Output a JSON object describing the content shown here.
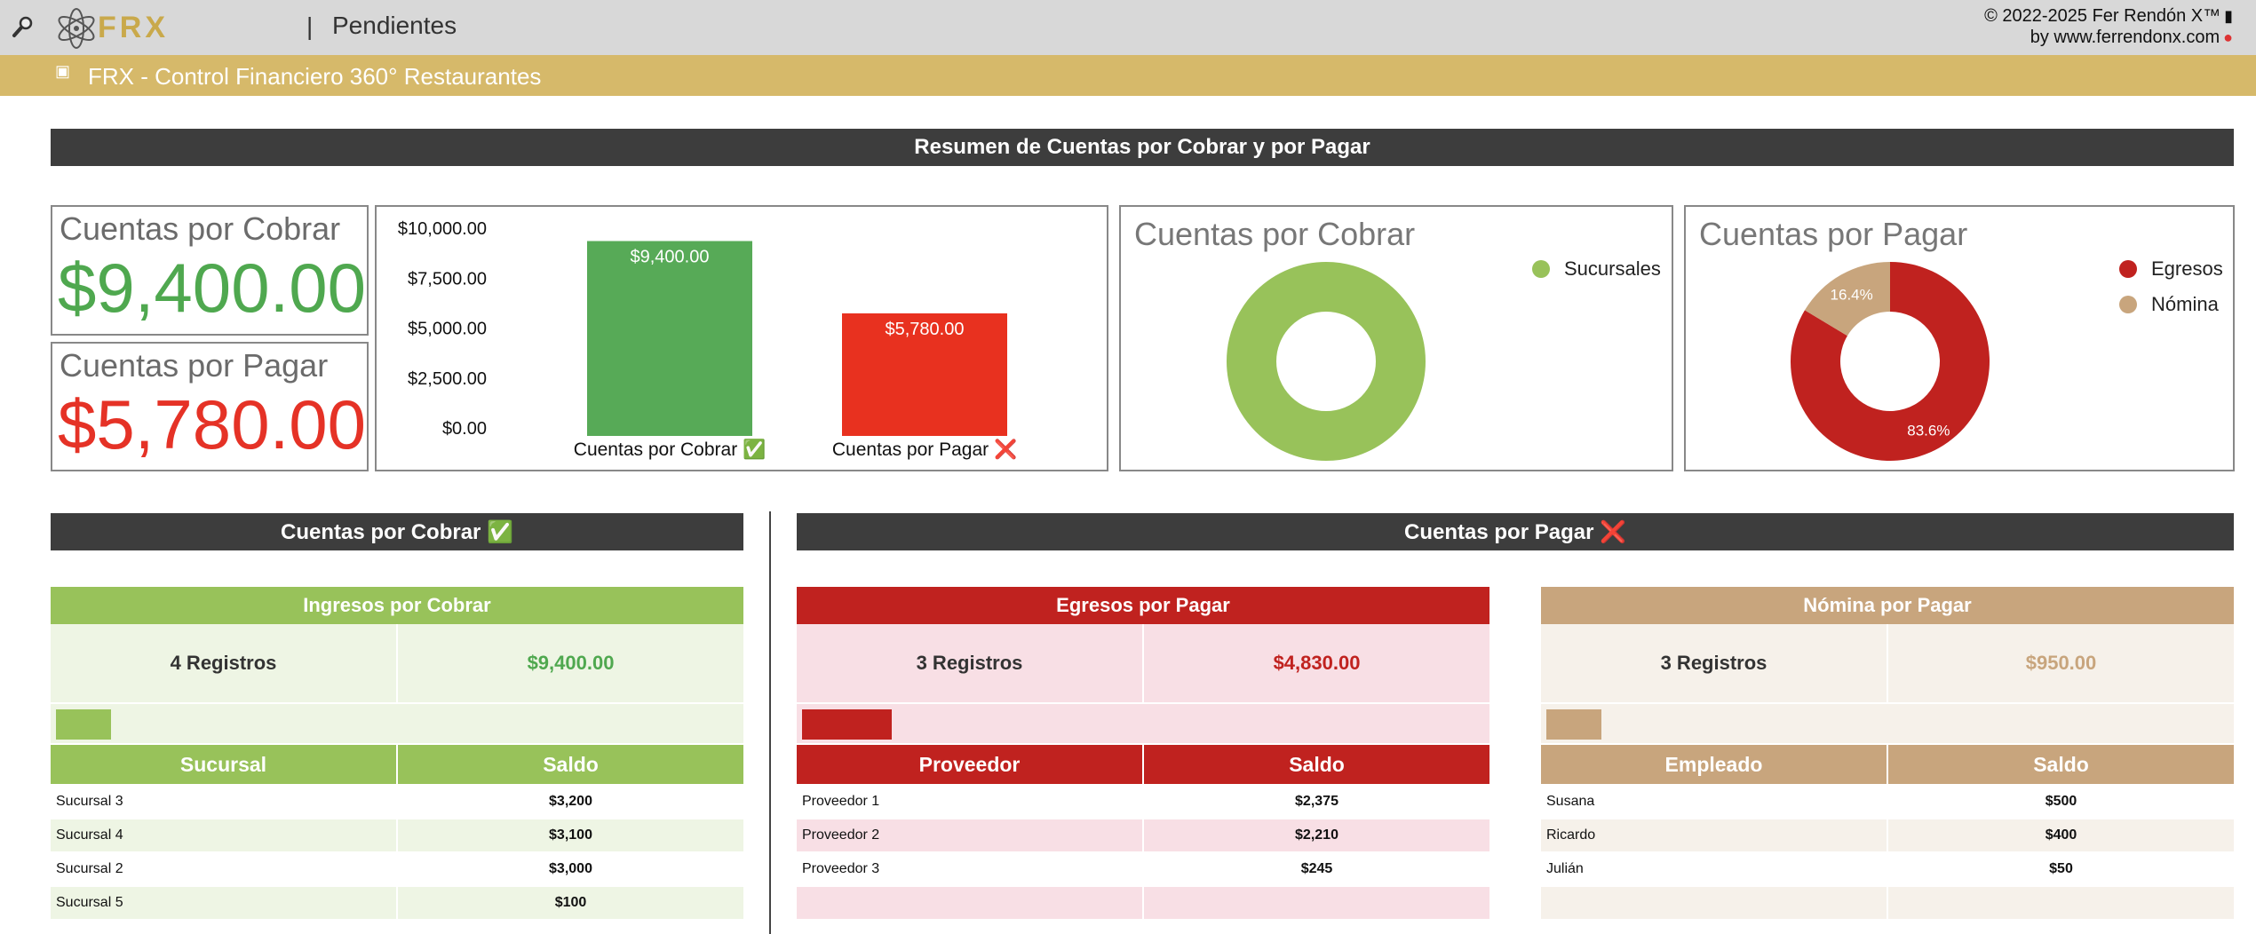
{
  "header": {
    "page_title": "Pendientes",
    "separator": "|",
    "logo_text": "FRX",
    "copyright_line1": "© 2022-2025 Fer Rendón X™",
    "copyright_line2": "by www.ferrendonx.com",
    "icons": [
      "search-icon",
      "atom-logo-icon",
      "phone-icon",
      "pin-icon"
    ]
  },
  "app_bar": {
    "title": "FRX - Control Financiero 360° Restaurantes",
    "icon": "dashboard-icon"
  },
  "summary_header": "Resumen de Cuentas por Cobrar y por Pagar",
  "kpis": {
    "cobrar": {
      "label": "Cuentas por Cobrar",
      "value": "$9,400.00",
      "color": "#4fa84f"
    },
    "pagar": {
      "label": "Cuentas por Pagar",
      "value": "$5,780.00",
      "color": "#e53226"
    }
  },
  "chart_data": [
    {
      "type": "bar",
      "categories": [
        "Cuentas por Cobrar ✅",
        "Cuentas por Pagar ❌"
      ],
      "values": [
        9400,
        5780
      ],
      "data_labels": [
        "$9,400.00",
        "$5,780.00"
      ],
      "colors": [
        "#57aa57",
        "#e8311f"
      ],
      "yticks": [
        "$10,000.00",
        "$7,500.00",
        "$5,000.00",
        "$2,500.00",
        "$0.00"
      ],
      "ylim": [
        0,
        10000
      ]
    },
    {
      "type": "pie",
      "title": "Cuentas por Cobrar",
      "labels": [
        "Sucursales"
      ],
      "values": [
        100
      ],
      "colors": [
        "#98c25a"
      ],
      "legend": "top-right"
    },
    {
      "type": "pie",
      "title": "Cuentas por Pagar",
      "labels": [
        "Egresos",
        "Nómina"
      ],
      "values": [
        83.6,
        16.4
      ],
      "data_labels": [
        "83.6%",
        "16.4%"
      ],
      "colors": [
        "#c0221f",
        "#c8a57d"
      ],
      "legend": "top-right"
    }
  ],
  "sections": {
    "cobrar_header": "Cuentas por Cobrar ✅",
    "pagar_header": "Cuentas por Pagar ❌"
  },
  "tables": {
    "ingresos": {
      "title": "Ingresos por Cobrar",
      "count": "4 Registros",
      "total": "$9,400.00",
      "progress": 0.08,
      "col1": "Sucursal",
      "col2": "Saldo",
      "rows": [
        {
          "name": "Sucursal 3",
          "saldo": "$3,200"
        },
        {
          "name": "Sucursal 4",
          "saldo": "$3,100"
        },
        {
          "name": "Sucursal 2",
          "saldo": "$3,000"
        },
        {
          "name": "Sucursal 5",
          "saldo": "$100"
        }
      ],
      "colors": {
        "head": "#98c25a",
        "light": "#eef5e4",
        "text": "#4fa84f",
        "plain": "#ffffff"
      }
    },
    "egresos": {
      "title": "Egresos por Pagar",
      "count": "3 Registros",
      "total": "$4,830.00",
      "progress": 0.13,
      "col1": "Proveedor",
      "col2": "Saldo",
      "rows": [
        {
          "name": "Proveedor 1",
          "saldo": "$2,375"
        },
        {
          "name": "Proveedor 2",
          "saldo": "$2,210"
        },
        {
          "name": "Proveedor 3",
          "saldo": "$245"
        }
      ],
      "colors": {
        "head": "#c0221f",
        "light": "#f8dfe5",
        "text": "#c0221f",
        "plain": "#ffffff"
      }
    },
    "nomina": {
      "title": "Nómina por Pagar",
      "count": "3 Registros",
      "total": "$950.00",
      "progress": 0.08,
      "col1": "Empleado",
      "col2": "Saldo",
      "rows": [
        {
          "name": "Susana",
          "saldo": "$500"
        },
        {
          "name": "Ricardo",
          "saldo": "$400"
        },
        {
          "name": "Julián",
          "saldo": "$50"
        }
      ],
      "colors": {
        "head": "#c8a57d",
        "light": "#f6f1ea",
        "text": "#c8a57d",
        "plain": "#ffffff"
      }
    }
  }
}
